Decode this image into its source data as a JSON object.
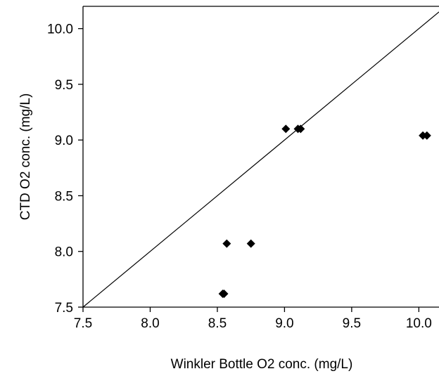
{
  "chart_data": {
    "type": "scatter",
    "title": "",
    "xlabel": "Winkler Bottle O2 conc. (mg/L)",
    "ylabel": "CTD O2 conc. (mg/L)",
    "xlim": [
      7.5,
      10.15
    ],
    "ylim": [
      7.5,
      10.2
    ],
    "xticks": [
      "7.5",
      "8.0",
      "8.5",
      "9.0",
      "9.5",
      "10.0"
    ],
    "yticks": [
      "7.5",
      "8.0",
      "8.5",
      "9.0",
      "9.5",
      "10.0"
    ],
    "grid": false,
    "legend": "none",
    "reference_line": "1:1",
    "marker": "diamond",
    "marker_color": "#000000",
    "series": [
      {
        "x": [
          8.54,
          8.55,
          8.57,
          8.75,
          9.01,
          9.1,
          9.12,
          10.03,
          10.06
        ],
        "y": [
          7.62,
          7.62,
          8.07,
          8.07,
          9.1,
          9.1,
          9.1,
          9.04,
          9.04
        ]
      }
    ]
  }
}
